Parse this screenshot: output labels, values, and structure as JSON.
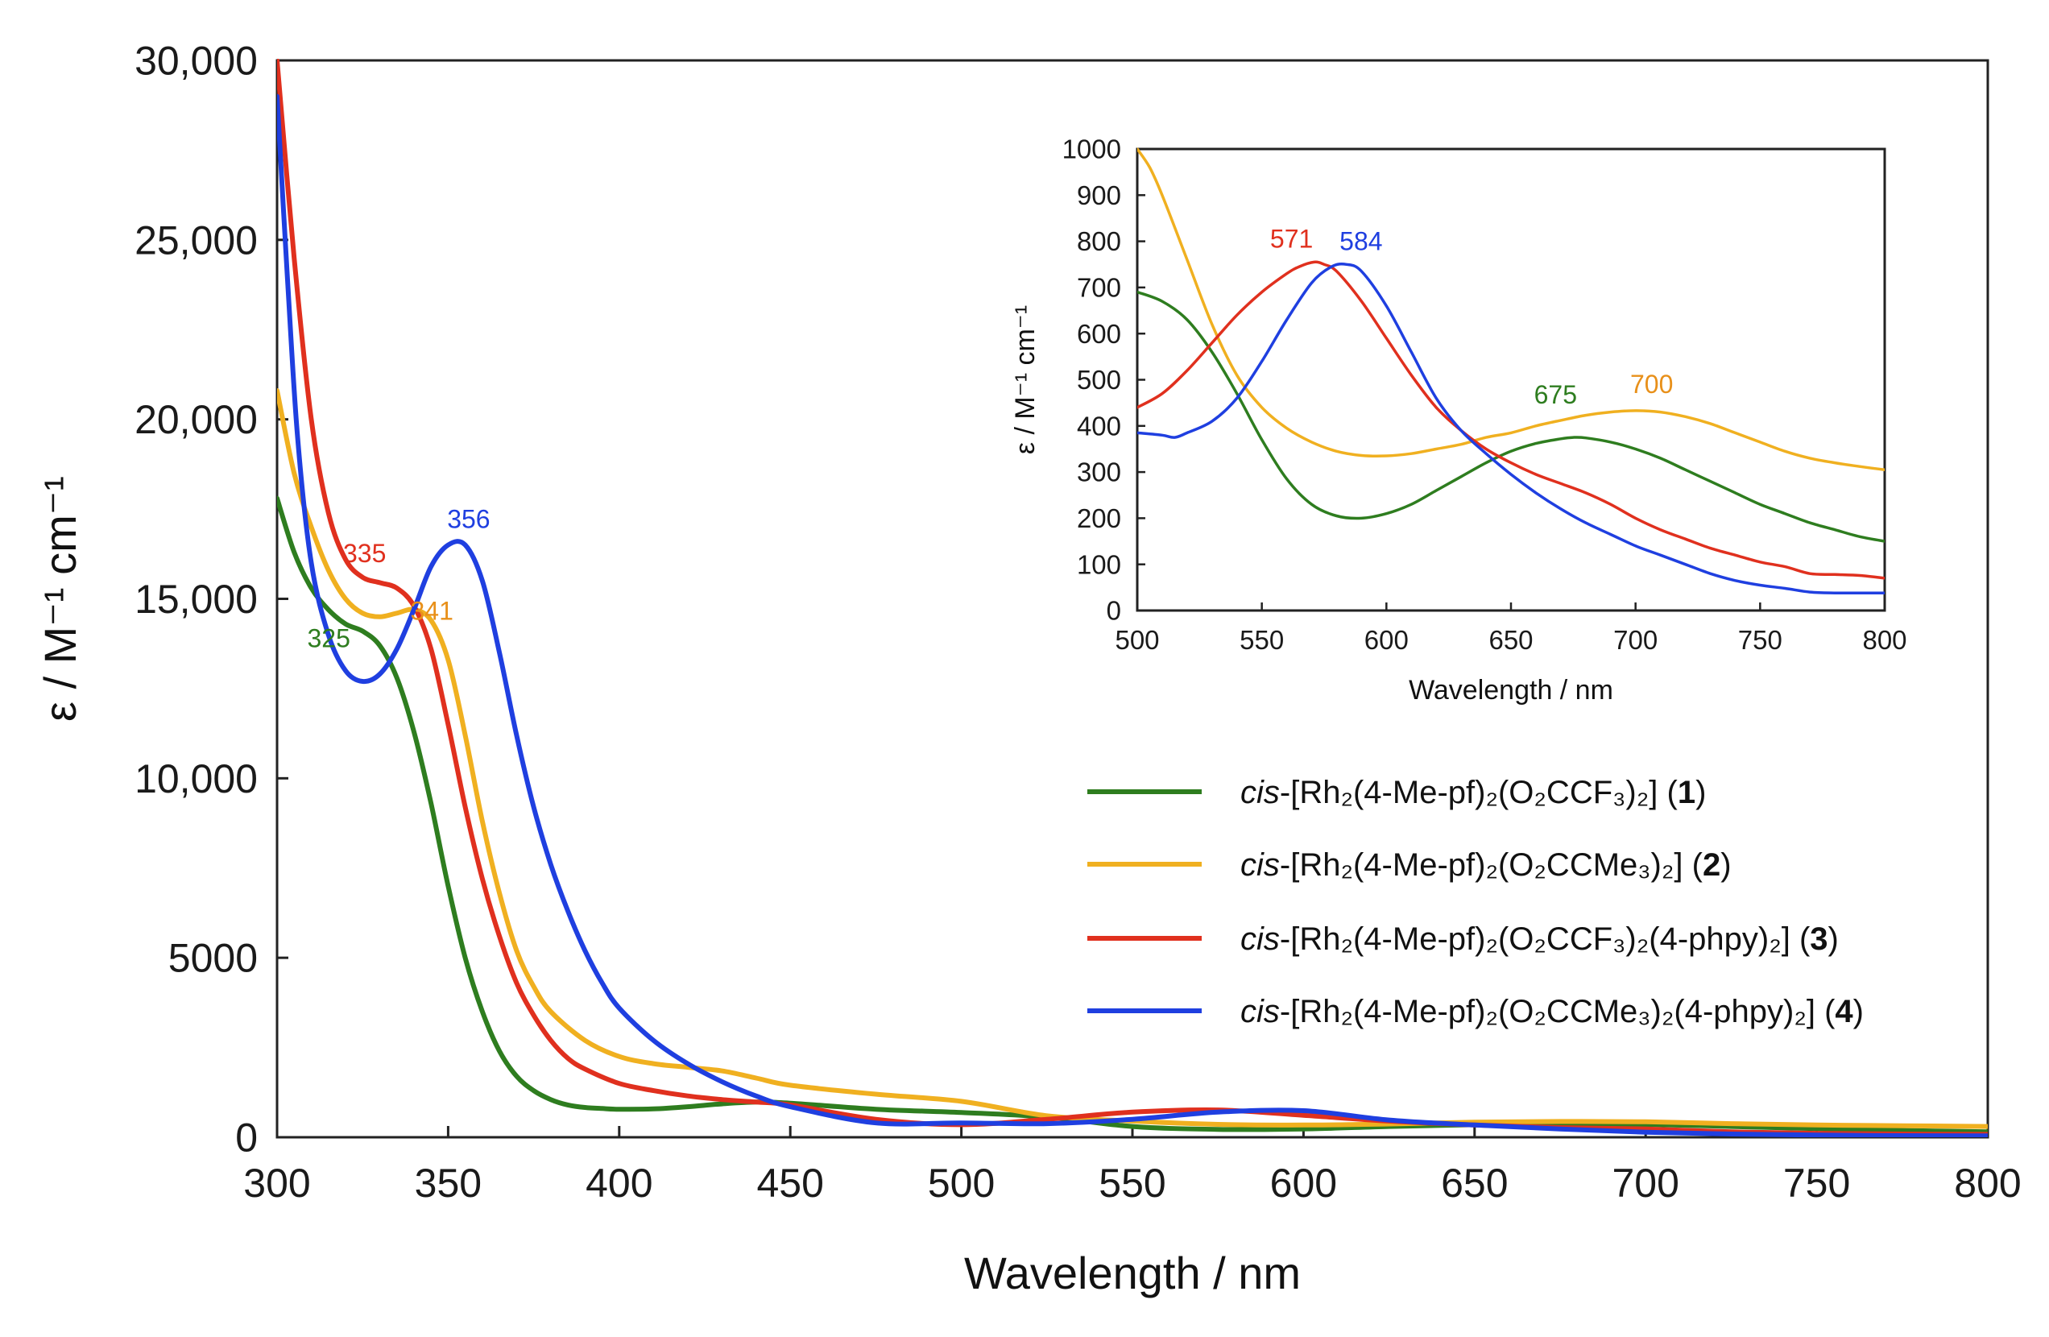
{
  "chart_data": [
    {
      "type": "line",
      "title": "",
      "xlabel": "Wavelength / nm",
      "ylabel": "ε / M⁻¹ cm⁻¹",
      "xlim": [
        300,
        800
      ],
      "ylim": [
        0,
        30000
      ],
      "xticks": [
        300,
        350,
        400,
        450,
        500,
        550,
        600,
        650,
        700,
        750,
        800
      ],
      "yticks": [
        0,
        5000,
        10000,
        15000,
        20000,
        25000,
        30000
      ],
      "ytick_labels": [
        "0",
        "5000",
        "10,000",
        "15,000",
        "20,000",
        "25,000",
        "30,000"
      ],
      "series": [
        {
          "name": "1",
          "legend": "cis-[Rh2(4-Me-pf)2(O2CCF3)2] (1)",
          "color": "#2e7d1f",
          "x": [
            300,
            305,
            310,
            315,
            320,
            325,
            330,
            335,
            340,
            345,
            350,
            355,
            360,
            365,
            370,
            375,
            380,
            385,
            390,
            395,
            400,
            410,
            420,
            430,
            440,
            450,
            475,
            500,
            525,
            550,
            575,
            600,
            625,
            650,
            675,
            700,
            725,
            750,
            775,
            800
          ],
          "y": [
            17800,
            16300,
            15300,
            14700,
            14300,
            14100,
            13700,
            12800,
            11300,
            9300,
            7000,
            5000,
            3500,
            2400,
            1700,
            1300,
            1050,
            900,
            830,
            800,
            780,
            790,
            850,
            930,
            980,
            950,
            780,
            690,
            560,
            300,
            220,
            230,
            300,
            350,
            380,
            360,
            300,
            240,
            190,
            150
          ]
        },
        {
          "name": "2",
          "legend": "cis-[Rh2(4-Me-pf)2(O2CCMe3)2] (2)",
          "color": "#f0b020",
          "x": [
            300,
            305,
            310,
            315,
            320,
            325,
            330,
            335,
            340,
            345,
            350,
            355,
            360,
            365,
            370,
            375,
            380,
            390,
            400,
            410,
            420,
            430,
            440,
            450,
            475,
            500,
            525,
            550,
            575,
            600,
            625,
            650,
            675,
            700,
            725,
            750,
            775,
            800
          ],
          "y": [
            20800,
            18500,
            17000,
            15800,
            15000,
            14600,
            14500,
            14600,
            14700,
            14400,
            13300,
            11200,
            8800,
            6800,
            5200,
            4200,
            3500,
            2700,
            2250,
            2050,
            1950,
            1850,
            1650,
            1450,
            1200,
            1000,
            600,
            450,
            360,
            340,
            370,
            420,
            440,
            430,
            380,
            340,
            320,
            300
          ]
        },
        {
          "name": "3",
          "legend": "cis-[Rh2(4-Me-pf)2(O2CCF3)2(4-phpy)2] (3)",
          "color": "#e0301e",
          "x": [
            300,
            305,
            310,
            315,
            320,
            325,
            330,
            335,
            340,
            345,
            350,
            355,
            360,
            365,
            370,
            375,
            380,
            385,
            390,
            400,
            410,
            420,
            430,
            440,
            450,
            475,
            500,
            525,
            550,
            575,
            600,
            625,
            650,
            675,
            700,
            725,
            750,
            775,
            800
          ],
          "y": [
            30000,
            24500,
            20000,
            17400,
            16100,
            15600,
            15450,
            15300,
            14800,
            13600,
            11500,
            9200,
            7200,
            5600,
            4300,
            3400,
            2700,
            2200,
            1900,
            1500,
            1300,
            1150,
            1050,
            980,
            900,
            500,
            350,
            500,
            700,
            760,
            610,
            450,
            340,
            270,
            230,
            150,
            110,
            90,
            80
          ]
        },
        {
          "name": "4",
          "legend": "cis-[Rh2(4-Me-pf)2(O2CCMe3)2(4-phpy)2] (4)",
          "color": "#1f3fe0",
          "x": [
            300,
            303,
            306,
            310,
            315,
            320,
            325,
            330,
            335,
            340,
            345,
            350,
            355,
            360,
            365,
            370,
            375,
            380,
            385,
            390,
            395,
            400,
            410,
            420,
            430,
            440,
            450,
            475,
            500,
            525,
            550,
            575,
            600,
            625,
            650,
            675,
            700,
            725,
            750,
            775,
            800
          ],
          "y": [
            29000,
            24000,
            19500,
            16000,
            14000,
            13000,
            12700,
            12900,
            13600,
            14700,
            15900,
            16500,
            16500,
            15500,
            13500,
            11200,
            9200,
            7600,
            6300,
            5200,
            4300,
            3600,
            2700,
            2050,
            1550,
            1150,
            850,
            400,
            400,
            380,
            500,
            700,
            740,
            480,
            340,
            230,
            140,
            90,
            60,
            45,
            40
          ]
        }
      ],
      "annotations": [
        {
          "text": "325",
          "series": "1",
          "x": 325
        },
        {
          "text": "335",
          "series": "3",
          "x": 335
        },
        {
          "text": "341",
          "series": "2",
          "x": 341
        },
        {
          "text": "356",
          "series": "4",
          "x": 356
        }
      ],
      "legend_placement": "center-right"
    },
    {
      "type": "line",
      "title": "",
      "xlabel": "Wavelength / nm",
      "ylabel": "ε / M⁻¹ cm⁻¹",
      "xlim": [
        500,
        800
      ],
      "ylim": [
        0,
        1000
      ],
      "xticks": [
        500,
        550,
        600,
        650,
        700,
        750,
        800
      ],
      "yticks": [
        0,
        100,
        200,
        300,
        400,
        500,
        600,
        700,
        800,
        900,
        1000
      ],
      "placement": "inset top-right",
      "series": [
        {
          "name": "1",
          "color": "#2e7d1f",
          "x": [
            500,
            510,
            520,
            530,
            540,
            550,
            560,
            570,
            580,
            590,
            600,
            610,
            620,
            630,
            640,
            650,
            660,
            670,
            675,
            680,
            690,
            700,
            710,
            720,
            730,
            740,
            750,
            760,
            770,
            780,
            790,
            800
          ],
          "y": [
            690,
            670,
            630,
            560,
            470,
            370,
            285,
            230,
            205,
            200,
            210,
            230,
            260,
            290,
            320,
            345,
            362,
            372,
            375,
            374,
            365,
            350,
            330,
            305,
            280,
            255,
            230,
            210,
            190,
            175,
            160,
            150
          ]
        },
        {
          "name": "2",
          "color": "#f0b020",
          "x": [
            500,
            505,
            510,
            520,
            530,
            540,
            550,
            560,
            570,
            580,
            590,
            600,
            610,
            620,
            630,
            640,
            650,
            660,
            670,
            680,
            690,
            700,
            710,
            720,
            730,
            740,
            750,
            760,
            770,
            780,
            790,
            800
          ],
          "y": [
            1000,
            960,
            900,
            760,
            620,
            510,
            440,
            395,
            365,
            345,
            336,
            335,
            340,
            350,
            360,
            375,
            385,
            400,
            412,
            423,
            430,
            433,
            430,
            420,
            405,
            385,
            365,
            345,
            330,
            320,
            312,
            305
          ]
        },
        {
          "name": "3",
          "color": "#e0301e",
          "x": [
            500,
            510,
            520,
            530,
            540,
            550,
            560,
            565,
            571,
            575,
            580,
            590,
            600,
            610,
            620,
            630,
            640,
            650,
            660,
            670,
            680,
            690,
            700,
            710,
            720,
            730,
            740,
            750,
            760,
            770,
            780,
            790,
            800
          ],
          "y": [
            440,
            470,
            520,
            580,
            640,
            690,
            730,
            745,
            755,
            750,
            735,
            670,
            590,
            510,
            440,
            390,
            350,
            320,
            295,
            275,
            255,
            230,
            200,
            175,
            155,
            135,
            120,
            105,
            95,
            80,
            78,
            76,
            70
          ]
        },
        {
          "name": "4",
          "color": "#1f3fe0",
          "x": [
            500,
            510,
            515,
            520,
            530,
            540,
            550,
            560,
            570,
            578,
            584,
            590,
            600,
            610,
            620,
            630,
            640,
            650,
            660,
            670,
            680,
            690,
            700,
            710,
            720,
            730,
            740,
            750,
            760,
            770,
            780,
            790,
            800
          ],
          "y": [
            385,
            380,
            375,
            385,
            410,
            460,
            540,
            630,
            710,
            745,
            750,
            735,
            660,
            560,
            460,
            390,
            340,
            295,
            255,
            220,
            190,
            165,
            140,
            120,
            100,
            80,
            65,
            55,
            48,
            40,
            38,
            38,
            38
          ]
        }
      ],
      "annotations": [
        {
          "text": "571",
          "series": "3",
          "x": 571
        },
        {
          "text": "584",
          "series": "4",
          "x": 584
        },
        {
          "text": "675",
          "series": "1",
          "x": 675
        },
        {
          "text": "700",
          "series": "2",
          "x": 700
        }
      ]
    }
  ],
  "legend": [
    {
      "series": "1",
      "color": "#2e7d1f",
      "prefix": "cis",
      "text": "-[Rh₂(4-Me-pf)₂(O₂CCF₃)₂] (",
      "num": "1",
      "suffix": ")"
    },
    {
      "series": "2",
      "color": "#f0b020",
      "prefix": "cis",
      "text": "-[Rh₂(4-Me-pf)₂(O₂CCMe₃)₂] (",
      "num": "2",
      "suffix": ")"
    },
    {
      "series": "3",
      "color": "#e0301e",
      "prefix": "cis",
      "text": "-[Rh₂(4-Me-pf)₂(O₂CCF₃)₂(4-phpy)₂] (",
      "num": "3",
      "suffix": ")"
    },
    {
      "series": "4",
      "color": "#1f3fe0",
      "prefix": "cis",
      "text": "-[Rh₂(4-Me-pf)₂(O₂CCMe₃)₂(4-phpy)₂] (",
      "num": "4",
      "suffix": ")"
    }
  ],
  "annotation_colors": {
    "1": "#2e7d1f",
    "2": "#e8901a",
    "3": "#e0301e",
    "4": "#1f3fe0"
  }
}
